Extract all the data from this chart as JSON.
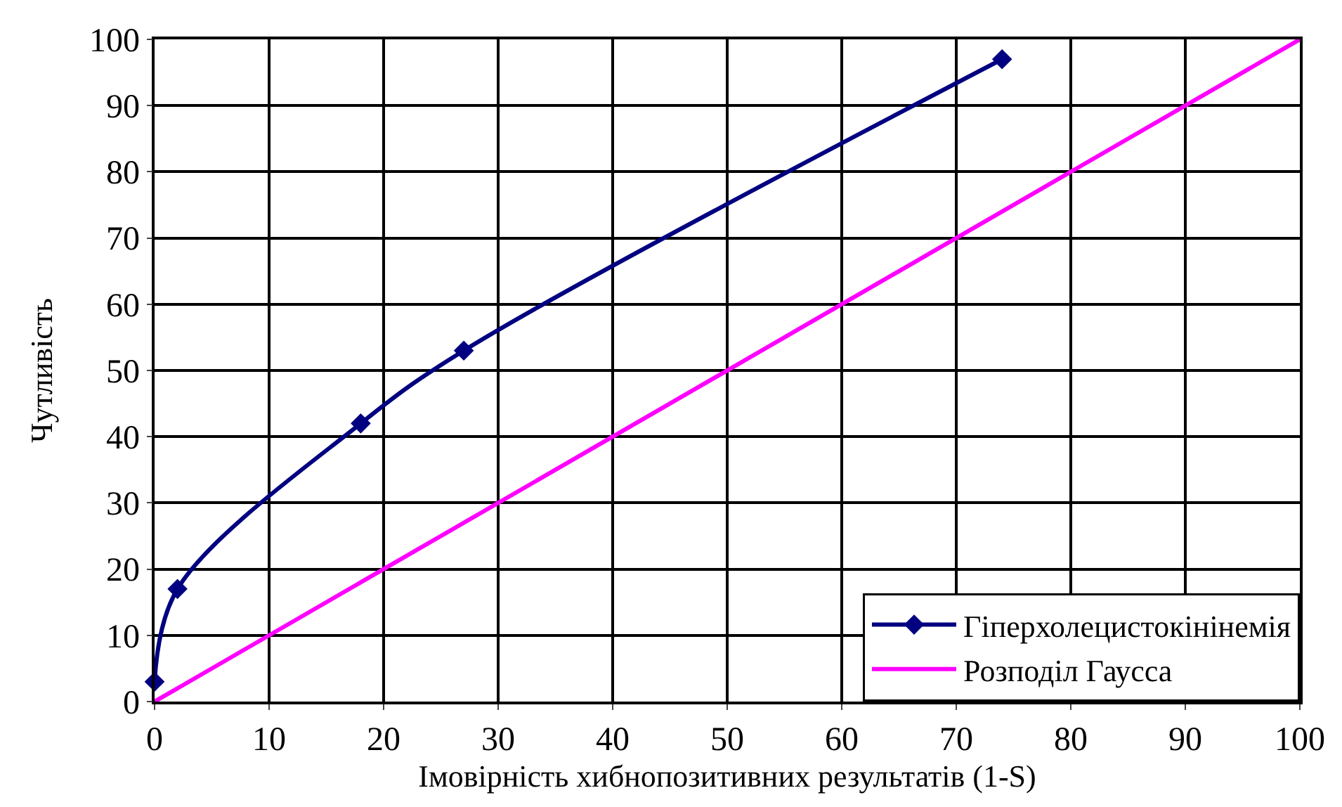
{
  "chart_data": {
    "type": "line",
    "xlabel": "Імовірність хибнопозитивних результатів (1-S)",
    "ylabel": "Чутливість",
    "xlim": [
      0,
      100
    ],
    "ylim": [
      0,
      100
    ],
    "xticks": [
      0,
      10,
      20,
      30,
      40,
      50,
      60,
      70,
      80,
      90,
      100
    ],
    "yticks": [
      0,
      10,
      20,
      30,
      40,
      50,
      60,
      70,
      80,
      90,
      100
    ],
    "grid": true,
    "legend": "bottom right",
    "series": [
      {
        "name": "Гіперхолецистокінінемія",
        "color": "#000080",
        "marker": "diamond",
        "x": [
          0,
          2,
          18,
          27,
          74
        ],
        "values": [
          3,
          17,
          42,
          53,
          97
        ]
      },
      {
        "name": "Розподіл Гаусса",
        "color": "#ff00ff",
        "marker": "none",
        "x": [
          0,
          100
        ],
        "values": [
          0,
          100
        ]
      }
    ]
  }
}
